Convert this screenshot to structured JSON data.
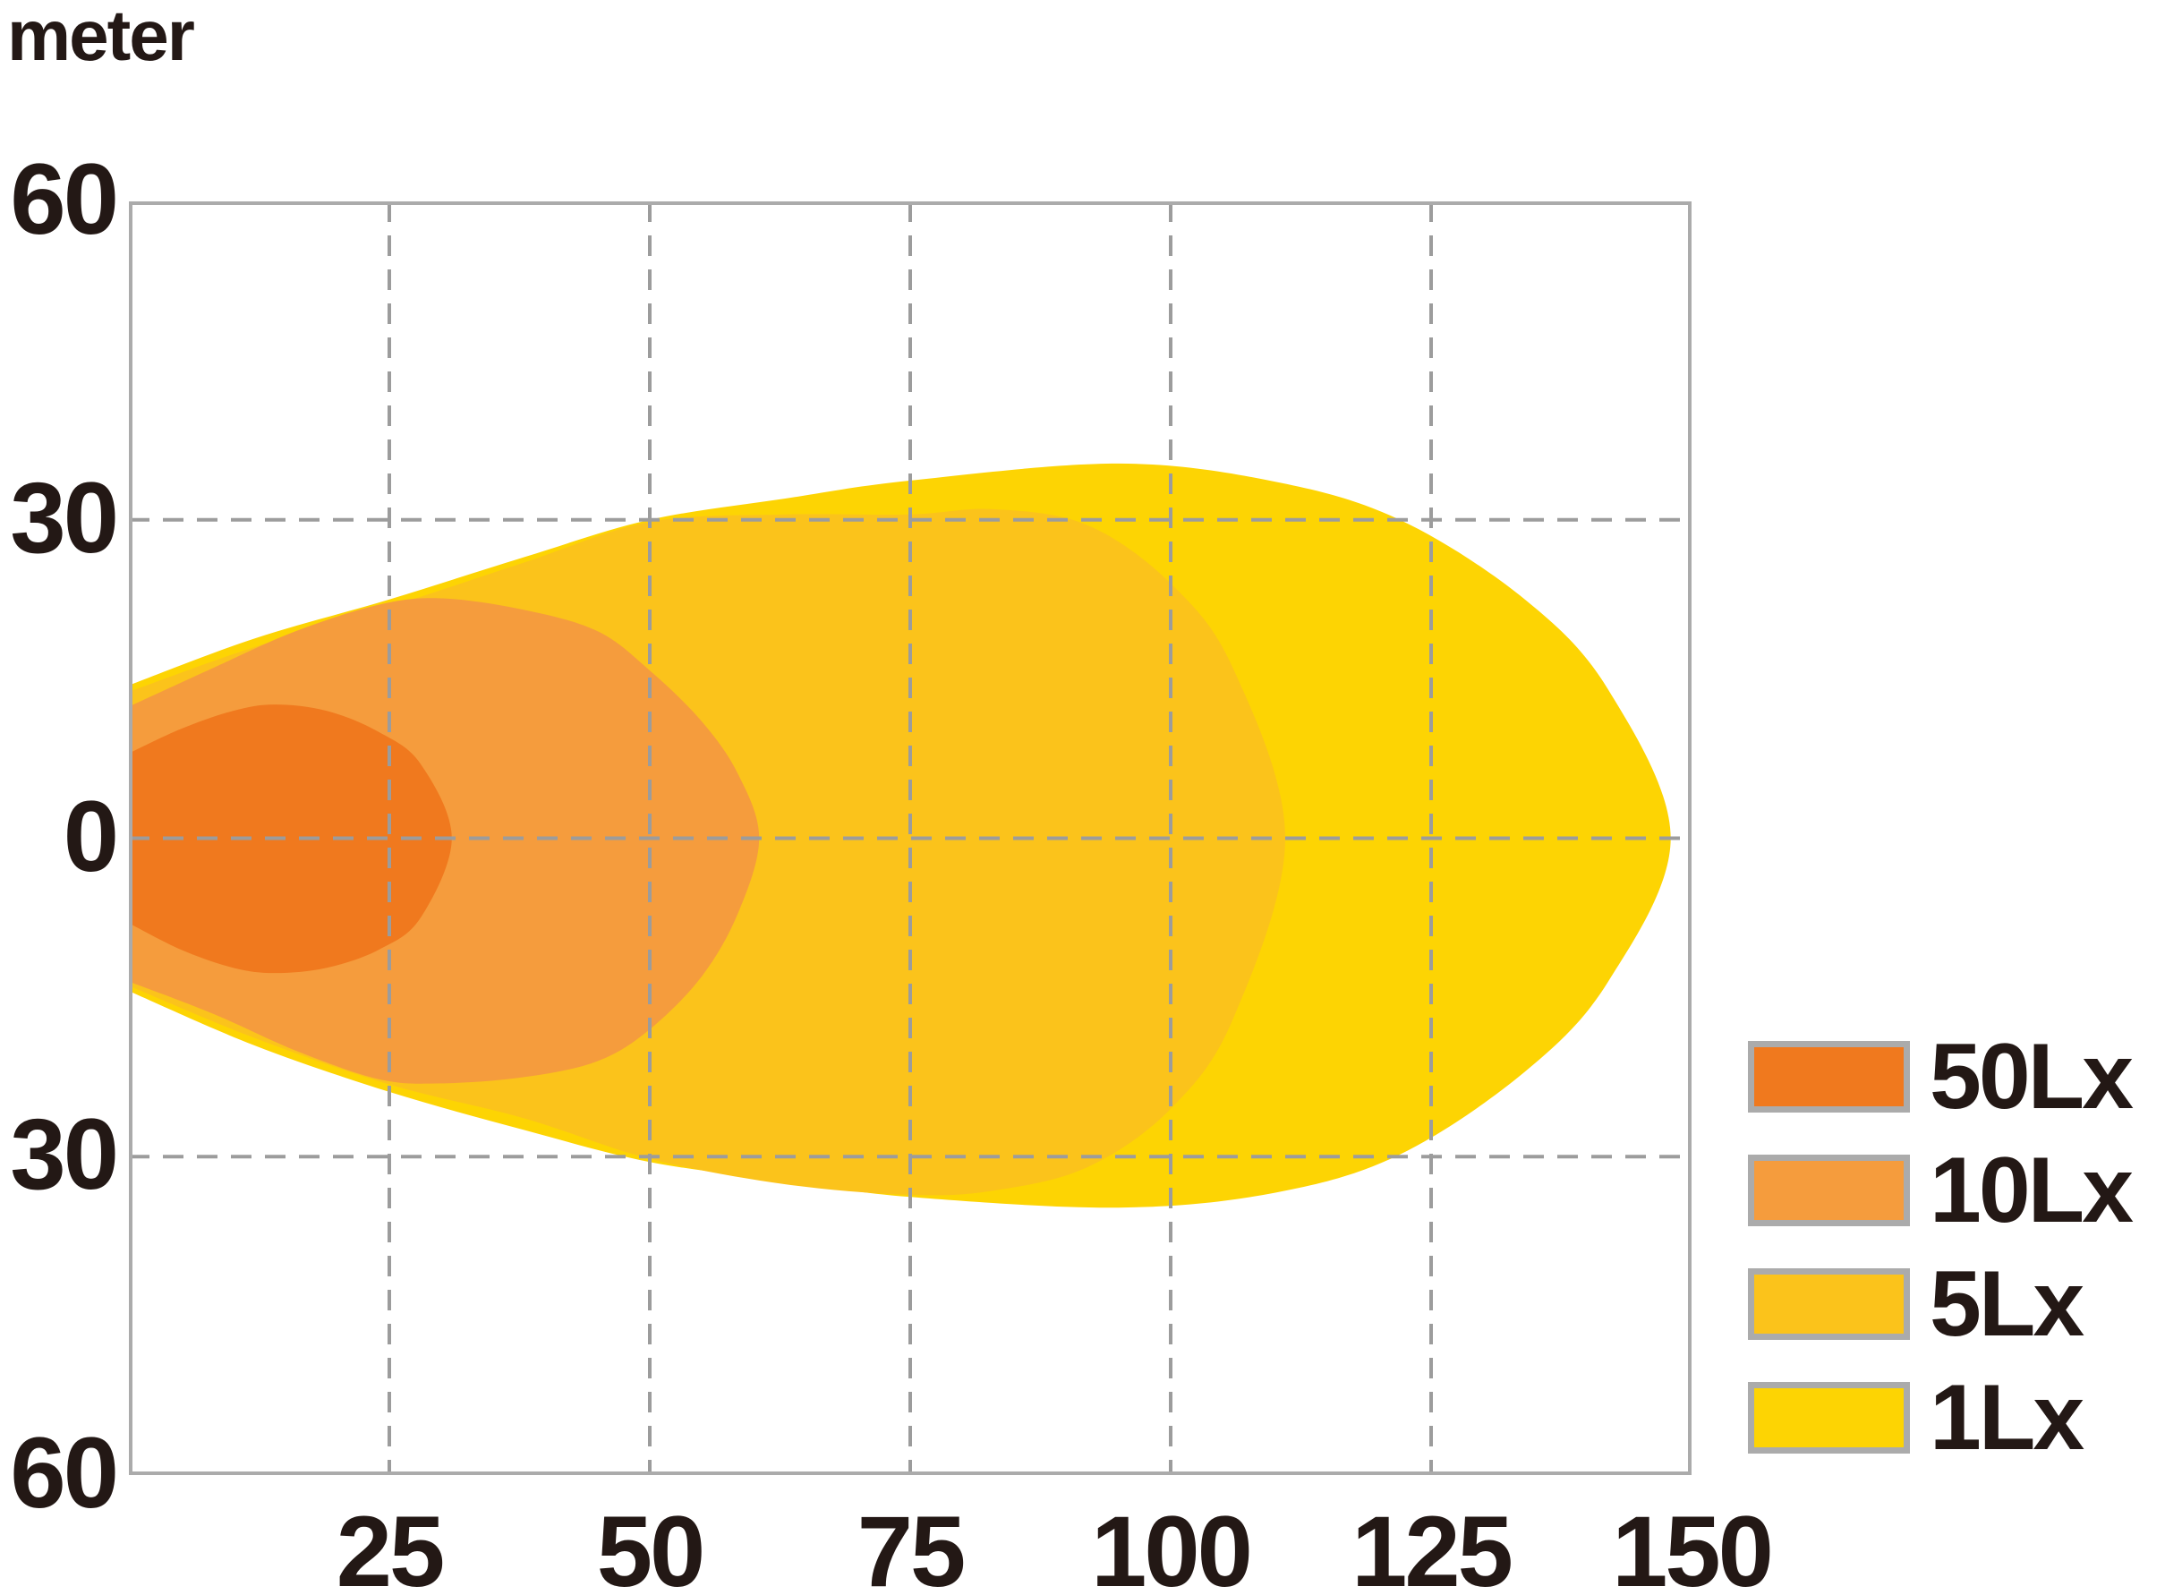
{
  "unit_label": "meter",
  "axes": {
    "x_ticks": [
      {
        "value": 25,
        "label": "25"
      },
      {
        "value": 50,
        "label": "50"
      },
      {
        "value": 75,
        "label": "75"
      },
      {
        "value": 100,
        "label": "100"
      },
      {
        "value": 125,
        "label": "125"
      },
      {
        "value": 150,
        "label": "150"
      }
    ],
    "y_ticks": [
      {
        "value": 60,
        "label": "60"
      },
      {
        "value": 30,
        "label": "30"
      },
      {
        "value": 0,
        "label": "0"
      },
      {
        "value": -30,
        "label": "30"
      },
      {
        "value": -60,
        "label": "60"
      }
    ],
    "x_range_m": [
      0,
      150
    ],
    "y_range_m": [
      -60,
      60
    ],
    "grid": true,
    "gridline_color": "#9C9C9C",
    "border_color": "#ABABAB"
  },
  "legend": {
    "items": [
      {
        "label": "50Lx",
        "color": "#F0791E"
      },
      {
        "label": "10Lx",
        "color": "#F59C3D"
      },
      {
        "label": "5Lx",
        "color": "#FBC31B"
      },
      {
        "label": "1Lx",
        "color": "#FDD403"
      }
    ]
  },
  "chart_data": {
    "type": "area",
    "description_unit": "meter",
    "x_tick_values": [
      25,
      50,
      75,
      100,
      125,
      150
    ],
    "y_tick_values": [
      60,
      30,
      0,
      -30,
      -60
    ],
    "grid": true,
    "legend_position": "right-bottom",
    "series": [
      {
        "name": "1Lx",
        "color": "#FDD403",
        "outline_m": [
          [
            0,
            14.4,
            -14.4
          ],
          [
            12,
            18.8,
            -19.5
          ],
          [
            25,
            22.5,
            -23.9
          ],
          [
            38,
            26.5,
            -27.5
          ],
          [
            50,
            30.0,
            -30.5
          ],
          [
            63,
            32.0,
            -32.3
          ],
          [
            75,
            33.7,
            -33.8
          ],
          [
            95,
            35.3,
            -34.8
          ],
          [
            110,
            33.6,
            -33.4
          ],
          [
            122,
            30.0,
            -29.8
          ],
          [
            134,
            22.5,
            -22.0
          ],
          [
            142,
            14.0,
            -13.5
          ],
          [
            148,
            0,
            0
          ]
        ]
      },
      {
        "name": "5Lx",
        "color": "#FBC31B",
        "outline_m": [
          [
            0,
            13.8,
            -13.9
          ],
          [
            12,
            18.0,
            -18.8
          ],
          [
            25,
            21.8,
            -23.2
          ],
          [
            38,
            26.0,
            -26.4
          ],
          [
            50,
            29.8,
            -30.2
          ],
          [
            63,
            30.5,
            -32.6
          ],
          [
            75,
            30.5,
            -33.6
          ],
          [
            83,
            31.0,
            -33.2
          ],
          [
            92,
            29.5,
            -31.0
          ],
          [
            100,
            24.0,
            -25.5
          ],
          [
            106,
            16.0,
            -17.0
          ],
          [
            111,
            0,
            0
          ]
        ]
      },
      {
        "name": "10Lx",
        "color": "#F59C3D",
        "outline_m": [
          [
            0,
            12.4,
            -13.5
          ],
          [
            8,
            16.0,
            -16.5
          ],
          [
            16,
            19.5,
            -20.0
          ],
          [
            24,
            22.0,
            -22.7
          ],
          [
            30,
            22.6,
            -23.1
          ],
          [
            38,
            21.5,
            -22.5
          ],
          [
            45,
            19.5,
            -21.0
          ],
          [
            50,
            15.8,
            -18.0
          ],
          [
            55,
            11.0,
            -13.0
          ],
          [
            58.5,
            6.0,
            -7.0
          ],
          [
            60.5,
            0,
            0
          ]
        ]
      },
      {
        "name": "50Lx",
        "color": "#F0791E",
        "outline_m": [
          [
            0,
            8.0,
            -8.0
          ],
          [
            5,
            10.3,
            -10.5
          ],
          [
            10,
            12.0,
            -12.2
          ],
          [
            14,
            12.6,
            -12.7
          ],
          [
            19,
            12.0,
            -12.2
          ],
          [
            24,
            10.0,
            -10.5
          ],
          [
            28,
            7.0,
            -7.5
          ],
          [
            31,
            0,
            0
          ]
        ]
      }
    ]
  }
}
